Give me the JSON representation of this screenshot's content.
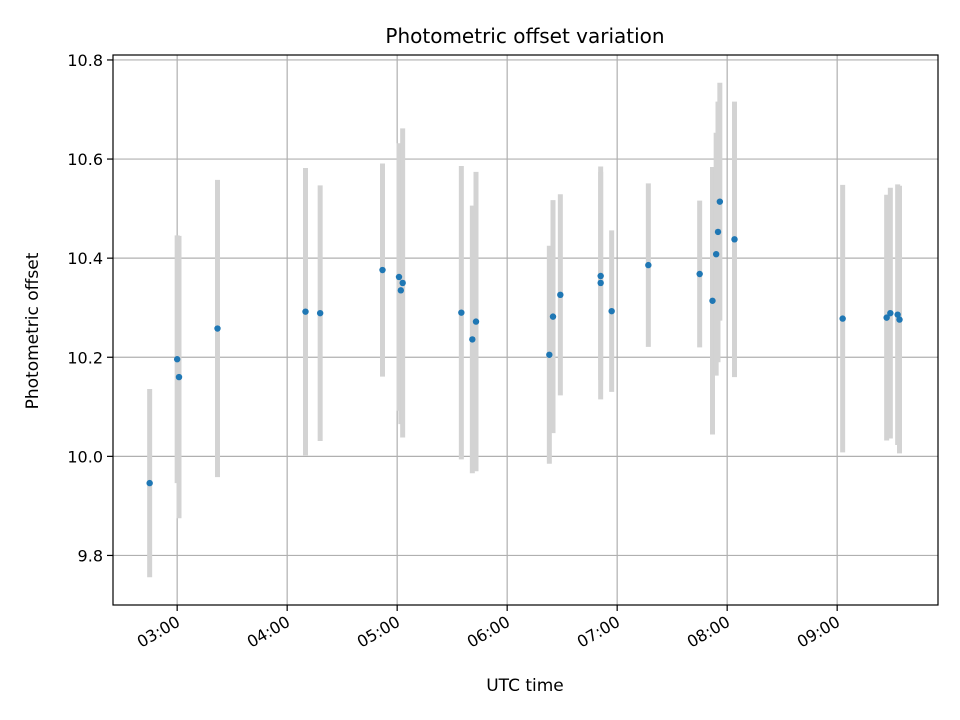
{
  "chart_data": {
    "type": "scatter",
    "title": "Photometric offset variation",
    "xlabel": "UTC time",
    "ylabel": "Photometric offset",
    "x_unit": "UTC time of day",
    "xlim": [
      "02:25",
      "09:55"
    ],
    "ylim": [
      9.7,
      10.81
    ],
    "grid": true,
    "x_ticks": [
      "03:00",
      "04:00",
      "05:00",
      "06:00",
      "07:00",
      "08:00",
      "09:00"
    ],
    "y_ticks": [
      9.8,
      10.0,
      10.2,
      10.4,
      10.6,
      10.8
    ],
    "y_tick_labels": [
      "9.8",
      "10.0",
      "10.2",
      "10.4",
      "10.6",
      "10.8"
    ],
    "point_color": "#1f77b4",
    "errorbar_color": "#d3d3d3",
    "series": [
      {
        "points": [
          {
            "x": "02:45",
            "y": 9.946,
            "yerr": 0.19
          },
          {
            "x": "03:00",
            "y": 10.196,
            "yerr": 0.25
          },
          {
            "x": "03:01",
            "y": 10.16,
            "yerr": 0.285
          },
          {
            "x": "03:22",
            "y": 10.258,
            "yerr": 0.3
          },
          {
            "x": "04:10",
            "y": 10.292,
            "yerr": 0.29
          },
          {
            "x": "04:18",
            "y": 10.289,
            "yerr": 0.258
          },
          {
            "x": "04:52",
            "y": 10.376,
            "yerr": 0.215
          },
          {
            "x": "05:01",
            "y": 10.362,
            "yerr": 0.27
          },
          {
            "x": "05:02",
            "y": 10.335,
            "yerr": 0.27
          },
          {
            "x": "05:03",
            "y": 10.35,
            "yerr": 0.312
          },
          {
            "x": "05:35",
            "y": 10.29,
            "yerr": 0.296
          },
          {
            "x": "05:41",
            "y": 10.236,
            "yerr": 0.27
          },
          {
            "x": "05:43",
            "y": 10.272,
            "yerr": 0.302
          },
          {
            "x": "06:23",
            "y": 10.205,
            "yerr": 0.22
          },
          {
            "x": "06:25",
            "y": 10.282,
            "yerr": 0.235
          },
          {
            "x": "06:29",
            "y": 10.326,
            "yerr": 0.203
          },
          {
            "x": "06:51",
            "y": 10.35,
            "yerr": 0.235
          },
          {
            "x": "06:51",
            "y": 10.364,
            "yerr": 0.21
          },
          {
            "x": "06:57",
            "y": 10.293,
            "yerr": 0.163
          },
          {
            "x": "07:17",
            "y": 10.386,
            "yerr": 0.165
          },
          {
            "x": "07:45",
            "y": 10.368,
            "yerr": 0.148
          },
          {
            "x": "07:52",
            "y": 10.314,
            "yerr": 0.27
          },
          {
            "x": "07:54",
            "y": 10.408,
            "yerr": 0.245
          },
          {
            "x": "07:55",
            "y": 10.453,
            "yerr": 0.263
          },
          {
            "x": "07:56",
            "y": 10.514,
            "yerr": 0.24
          },
          {
            "x": "08:04",
            "y": 10.438,
            "yerr": 0.278
          },
          {
            "x": "09:03",
            "y": 10.278,
            "yerr": 0.27
          },
          {
            "x": "09:27",
            "y": 10.28,
            "yerr": 0.248
          },
          {
            "x": "09:29",
            "y": 10.289,
            "yerr": 0.253
          },
          {
            "x": "09:33",
            "y": 10.286,
            "yerr": 0.263
          },
          {
            "x": "09:34",
            "y": 10.276,
            "yerr": 0.27
          }
        ]
      }
    ]
  }
}
